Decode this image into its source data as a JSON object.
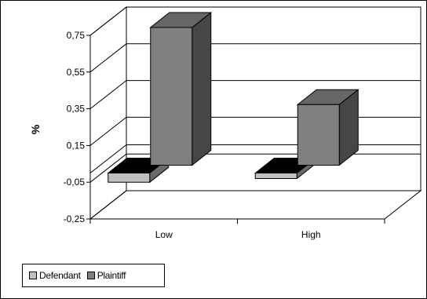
{
  "chart_data": {
    "type": "bar",
    "title": "",
    "xlabel": "",
    "ylabel": "%",
    "categories": [
      "Low",
      "High"
    ],
    "series": [
      {
        "name": "Defendant",
        "values": [
          -0.05,
          -0.03
        ],
        "color": "#c0c0c0"
      },
      {
        "name": "Plaintiff",
        "values": [
          0.75,
          0.33
        ],
        "color": "#808080"
      }
    ],
    "ylim": [
      -0.25,
      0.75
    ],
    "yticks": [
      "0,75",
      "0,55",
      "0,35",
      "0,15",
      "-0,05",
      "-0,25"
    ],
    "grid": true,
    "legend_position": "bottom-left"
  }
}
